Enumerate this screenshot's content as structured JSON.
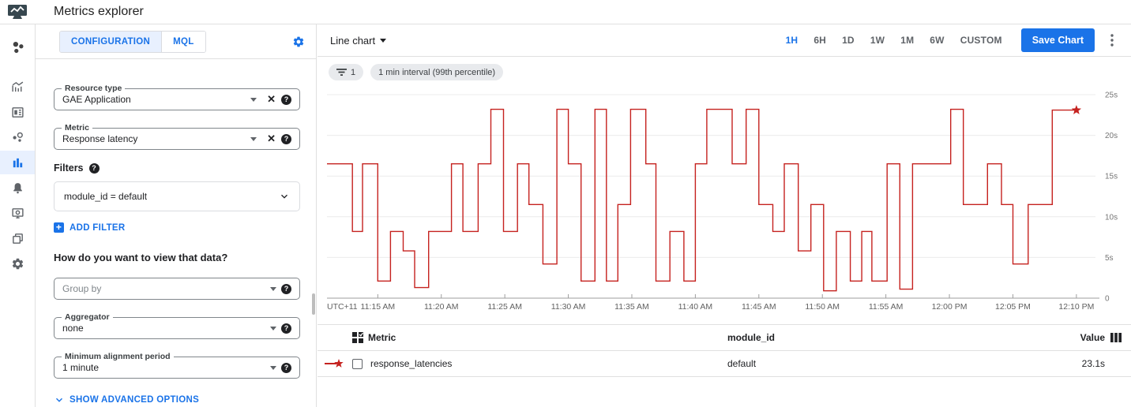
{
  "header": {
    "title": "Metrics explorer"
  },
  "sidebar": {
    "icons": [
      "monitoring-logo",
      "overview",
      "dashboards-list",
      "services",
      "metrics-explorer",
      "alerting",
      "uptime-checks",
      "groups",
      "settings"
    ],
    "active": "metrics-explorer"
  },
  "panel": {
    "tabs": [
      {
        "label": "CONFIGURATION",
        "active": true
      },
      {
        "label": "MQL",
        "active": false
      }
    ],
    "resource_type": {
      "label": "Resource type",
      "value": "GAE Application"
    },
    "metric": {
      "label": "Metric",
      "value": "Response latency"
    },
    "filters_label": "Filters",
    "filter_chip": "module_id = default",
    "add_filter_label": "ADD FILTER",
    "view_heading": "How do you want to view that data?",
    "group_by_placeholder": "Group by",
    "aggregator": {
      "label": "Aggregator",
      "value": "none"
    },
    "min_alignment": {
      "label": "Minimum alignment period",
      "value": "1 minute"
    },
    "show_advanced_label": "SHOW ADVANCED OPTIONS"
  },
  "toolbar": {
    "chart_type": "Line chart",
    "ranges": [
      "1H",
      "6H",
      "1D",
      "1W",
      "1M",
      "6W",
      "CUSTOM"
    ],
    "active_range": "1H",
    "save_label": "Save Chart"
  },
  "chips": {
    "filter_count": "1",
    "interval_label": "1 min interval (99th percentile)"
  },
  "chart_data": {
    "type": "line",
    "style": "step-after",
    "series_name": "response_latencies",
    "line_color": "#c5221f",
    "xlim_minutes": [
      0,
      60.5
    ],
    "ylim": [
      0,
      26.4
    ],
    "x_prefix_label": "UTC+11",
    "x_ticks": [
      {
        "t": 4,
        "label": "11:15 AM"
      },
      {
        "t": 9,
        "label": "11:20 AM"
      },
      {
        "t": 14,
        "label": "11:25 AM"
      },
      {
        "t": 19,
        "label": "11:30 AM"
      },
      {
        "t": 24,
        "label": "11:35 AM"
      },
      {
        "t": 29,
        "label": "11:40 AM"
      },
      {
        "t": 34,
        "label": "11:45 AM"
      },
      {
        "t": 39,
        "label": "11:50 AM"
      },
      {
        "t": 44,
        "label": "11:55 AM"
      },
      {
        "t": 49,
        "label": "12:00 PM"
      },
      {
        "t": 54,
        "label": "12:05 PM"
      },
      {
        "t": 59,
        "label": "12:10 PM"
      }
    ],
    "y_ticks": [
      {
        "v": 0,
        "label": "0"
      },
      {
        "v": 5,
        "label": "5s"
      },
      {
        "v": 10,
        "label": "10s"
      },
      {
        "v": 15,
        "label": "15s"
      },
      {
        "v": 20,
        "label": "20s"
      },
      {
        "v": 25,
        "label": "25s"
      }
    ],
    "steps_t_minutes_value_seconds": [
      [
        0,
        16.5
      ],
      [
        2,
        8.2
      ],
      [
        2.8,
        16.5
      ],
      [
        4,
        2.1
      ],
      [
        5,
        8.2
      ],
      [
        6,
        5.8
      ],
      [
        6.9,
        1.3
      ],
      [
        8,
        8.2
      ],
      [
        9.8,
        16.5
      ],
      [
        10.7,
        8.2
      ],
      [
        11.9,
        16.5
      ],
      [
        12.9,
        23.2
      ],
      [
        13.9,
        8.2
      ],
      [
        15,
        16.5
      ],
      [
        15.9,
        11.5
      ],
      [
        17,
        4.2
      ],
      [
        18.1,
        23.2
      ],
      [
        19,
        16.5
      ],
      [
        20,
        2.1
      ],
      [
        21.1,
        23.2
      ],
      [
        22,
        2.1
      ],
      [
        22.9,
        11.5
      ],
      [
        23.9,
        23.2
      ],
      [
        25.1,
        16.5
      ],
      [
        25.9,
        2.1
      ],
      [
        27,
        8.2
      ],
      [
        28.1,
        2.1
      ],
      [
        29,
        16.5
      ],
      [
        29.9,
        23.2
      ],
      [
        31.9,
        16.5
      ],
      [
        33,
        23.2
      ],
      [
        34,
        11.5
      ],
      [
        35.1,
        8.2
      ],
      [
        36,
        16.5
      ],
      [
        37.1,
        5.8
      ],
      [
        38.1,
        11.5
      ],
      [
        39.1,
        0.9
      ],
      [
        40.1,
        8.2
      ],
      [
        41.2,
        2.1
      ],
      [
        42.1,
        8.2
      ],
      [
        42.9,
        2.1
      ],
      [
        44.1,
        16.5
      ],
      [
        45.1,
        1.1
      ],
      [
        46.1,
        16.5
      ],
      [
        49.1,
        23.2
      ],
      [
        50.1,
        11.5
      ],
      [
        52,
        16.5
      ],
      [
        53.1,
        11.5
      ],
      [
        54,
        4.2
      ],
      [
        55.2,
        11.5
      ],
      [
        57.1,
        23.1
      ]
    ],
    "end_t": 59,
    "end_marker": "star",
    "end_value": 23.1
  },
  "table": {
    "columns": [
      "Metric",
      "module_id",
      "Value"
    ],
    "rows": [
      {
        "metric": "response_latencies",
        "module_id": "default",
        "value": "23.1s"
      }
    ]
  },
  "colors": {
    "accent": "#1a73e8",
    "line": "#c5221f",
    "tab_bg": "#e8f0fe"
  }
}
